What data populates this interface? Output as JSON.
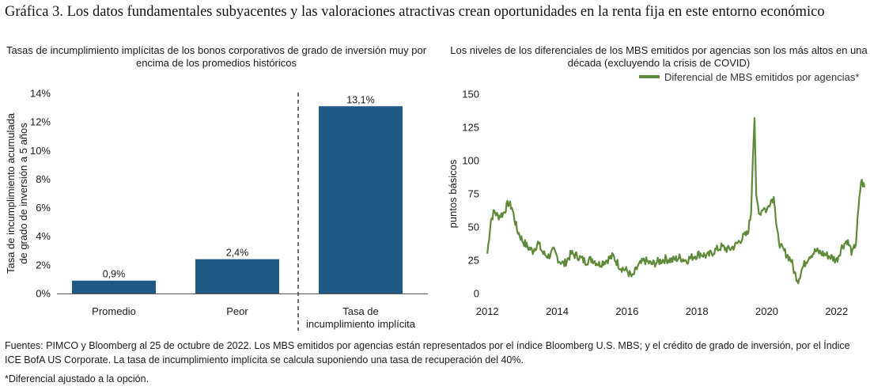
{
  "title": "Gráfica 3. Los datos fundamentales subyacentes y las valoraciones atractivas crean oportunidades en la renta fija en este entorno económico",
  "footnotes": {
    "sources": "Fuentes: PIMCO y Bloomberg al 25 de octubre de 2022. Los MBS emitidos por agencias están representados por el índice Bloomberg U.S. MBS; y el crédito de grado de inversión, por el Índice ICE BofA US Corporate. La tasa de incumplimiento implícita se calcula suponiendo una tasa de recuperación del 40%.",
    "oas": "*Diferencial ajustado a la opción."
  },
  "colors": {
    "bar": "#1f5a85",
    "line": "#5e8a3a",
    "divider": "#222222",
    "axis": "#555555"
  },
  "chart_data": [
    {
      "type": "bar",
      "title": "Tasas de incumplimiento implícitas de los bonos corporativos de grado de inversión muy por encima de los promedios históricos",
      "ylabel": "Tasa de incumplimiento acumulada de grado de inversión a 5 años",
      "categories": [
        "Promedio",
        "Peor",
        "Tasa de incumplimiento implícita"
      ],
      "category_lines": [
        [
          "Promedio"
        ],
        [
          "Peor"
        ],
        [
          "Tasa de",
          "incumplimiento implícita"
        ]
      ],
      "values": [
        0.9,
        2.4,
        13.1
      ],
      "data_labels": [
        "0,9%",
        "2,4%",
        "13,1%"
      ],
      "ylim": [
        0,
        14
      ],
      "yticks": [
        0,
        2,
        4,
        6,
        8,
        10,
        12,
        14
      ],
      "ytick_labels": [
        "0%",
        "2%",
        "4%",
        "6%",
        "8%",
        "10%",
        "12%",
        "14%"
      ],
      "divider": "dashed vertical line between Peor and Tasa de incumplimiento implícita",
      "grid": false
    },
    {
      "type": "line",
      "title": "Los niveles de los diferenciales de los MBS emitidos por agencias son los más altos en una década (excluyendo la crisis de COVID)",
      "ylabel": "puntos básicos",
      "xlabel": "",
      "legend": "top-right",
      "ylim": [
        0,
        150
      ],
      "yticks": [
        0,
        25,
        50,
        75,
        100,
        125,
        150
      ],
      "xlim": [
        2011.95,
        2022.82
      ],
      "xticks": [
        2012,
        2014,
        2016,
        2018,
        2020,
        2022
      ],
      "xtick_labels": [
        "2012",
        "2014",
        "2016",
        "2018",
        "2020",
        "2022"
      ],
      "grid": false,
      "series": [
        {
          "name": "Diferencial de MBS emitidos por agencias*",
          "x": [
            2012.0,
            2012.1,
            2012.2,
            2012.3,
            2012.45,
            2012.6,
            2012.7,
            2012.85,
            2013.0,
            2013.15,
            2013.3,
            2013.45,
            2013.6,
            2013.75,
            2013.9,
            2014.05,
            2014.2,
            2014.4,
            2014.6,
            2014.8,
            2015.0,
            2015.2,
            2015.4,
            2015.6,
            2015.8,
            2016.0,
            2016.15,
            2016.3,
            2016.5,
            2016.7,
            2016.9,
            2017.1,
            2017.3,
            2017.5,
            2017.7,
            2017.9,
            2018.1,
            2018.3,
            2018.5,
            2018.7,
            2018.9,
            2019.1,
            2019.3,
            2019.45,
            2019.55,
            2019.6,
            2019.65,
            2019.7,
            2019.8,
            2019.9,
            2020.0,
            2020.1,
            2020.2,
            2020.23,
            2020.26,
            2020.3,
            2020.4,
            2020.55,
            2020.7,
            2020.8,
            2020.9,
            2021.0,
            2021.2,
            2021.4,
            2021.6,
            2021.8,
            2022.0,
            2022.15,
            2022.3,
            2022.45,
            2022.55,
            2022.6,
            2022.7,
            2022.8
          ],
          "y": [
            30,
            55,
            62,
            58,
            60,
            68,
            65,
            48,
            40,
            35,
            32,
            38,
            30,
            28,
            32,
            25,
            22,
            30,
            28,
            24,
            26,
            22,
            25,
            28,
            20,
            17,
            12,
            20,
            25,
            22,
            24,
            26,
            25,
            27,
            25,
            28,
            30,
            28,
            32,
            35,
            33,
            36,
            42,
            45,
            60,
            100,
            132,
            72,
            60,
            65,
            62,
            70,
            72,
            68,
            55,
            45,
            35,
            30,
            25,
            15,
            10,
            18,
            28,
            32,
            30,
            28,
            25,
            35,
            40,
            30,
            38,
            55,
            85,
            80
          ]
        }
      ]
    }
  ]
}
